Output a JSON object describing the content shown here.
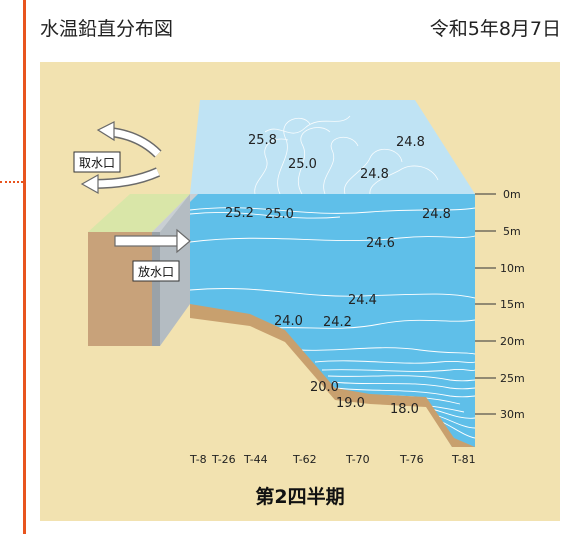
{
  "header": {
    "title": "水温鉛直分布図",
    "date": "令和5年8月7日"
  },
  "labels": {
    "intake": "取水口",
    "outlet": "放水口"
  },
  "caption": "第2四半期",
  "depth_scale": [
    "0m",
    "5m",
    "10m",
    "15m",
    "20m",
    "25m",
    "30m"
  ],
  "stations": [
    "T-8",
    "T-26",
    "T-44",
    "T-62",
    "T-70",
    "T-76",
    "T-81"
  ],
  "air_temps": [
    "25.8",
    "25.0",
    "24.8",
    "24.8"
  ],
  "water_temps": [
    "25.2",
    "25.0",
    "24.8",
    "24.6",
    "24.4",
    "24.0",
    "24.2",
    "20.0",
    "19.0",
    "18.0"
  ],
  "colors": {
    "accent_line": "#e8541e",
    "panel": "#f2e2b0",
    "air": "#bfe3f4",
    "water": "#5fbfe9",
    "seabed": "#c8a06e"
  }
}
